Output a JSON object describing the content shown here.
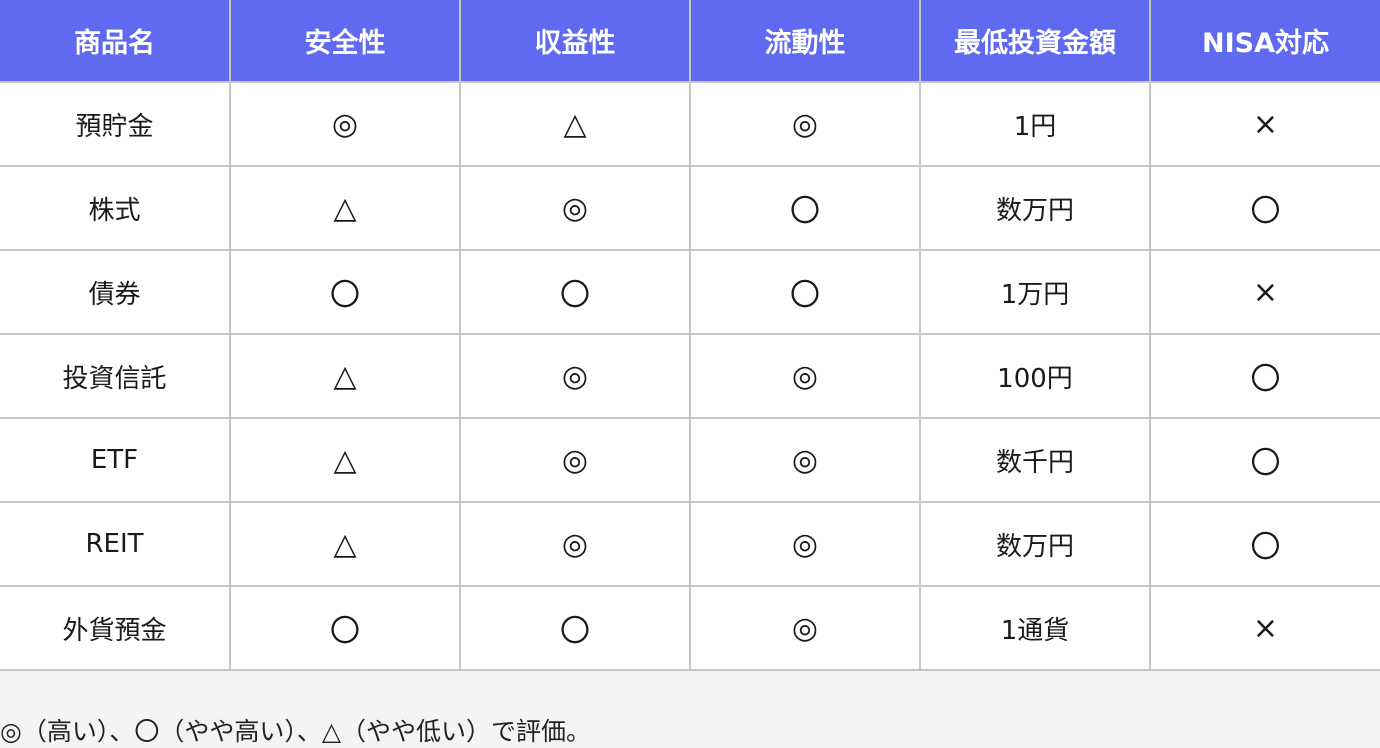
{
  "table": {
    "headers": [
      "商品名",
      "安全性",
      "収益性",
      "流動性",
      "最低投資金額",
      "NISA対応"
    ],
    "rows": [
      [
        "預貯金",
        "◎",
        "△",
        "◎",
        "1円",
        "×"
      ],
      [
        "株式",
        "△",
        "◎",
        "〇",
        "数万円",
        "〇"
      ],
      [
        "債券",
        "〇",
        "〇",
        "〇",
        "1万円",
        "×"
      ],
      [
        "投資信託",
        "△",
        "◎",
        "◎",
        "100円",
        "〇"
      ],
      [
        "ETF",
        "△",
        "◎",
        "◎",
        "数千円",
        "〇"
      ],
      [
        "REIT",
        "△",
        "◎",
        "◎",
        "数万円",
        "〇"
      ],
      [
        "外貨預金",
        "〇",
        "〇",
        "◎",
        "1通貨",
        "×"
      ]
    ]
  },
  "note": "◎（高い）、〇（やや高い）、△（やや低い）で評価。",
  "colors": {
    "header_bg": "#5f6af0",
    "header_text": "#ffffff",
    "border": "#c6c6c6",
    "page_bg": "#f4f4f6"
  }
}
